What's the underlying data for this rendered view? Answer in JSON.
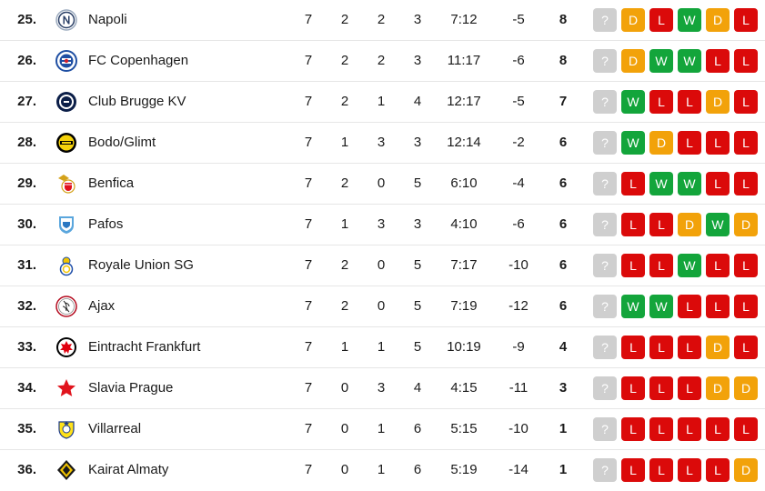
{
  "colors": {
    "win": "#13a53b",
    "draw": "#f2a20a",
    "loss": "#db0a0a",
    "next": "#cfcfcf"
  },
  "rows": [
    {
      "rank": "25.",
      "team": "Napoli",
      "logo_icon": "napoli-crest-icon",
      "played": "7",
      "won": "2",
      "drawn": "2",
      "lost": "3",
      "goals": "7:12",
      "diff": "-5",
      "points": "8",
      "form": [
        "?",
        "D",
        "L",
        "W",
        "D",
        "L"
      ]
    },
    {
      "rank": "26.",
      "team": "FC Copenhagen",
      "logo_icon": "fc-copenhagen-crest-icon",
      "played": "7",
      "won": "2",
      "drawn": "2",
      "lost": "3",
      "goals": "11:17",
      "diff": "-6",
      "points": "8",
      "form": [
        "?",
        "D",
        "W",
        "W",
        "L",
        "L"
      ]
    },
    {
      "rank": "27.",
      "team": "Club Brugge KV",
      "logo_icon": "club-brugge-crest-icon",
      "played": "7",
      "won": "2",
      "drawn": "1",
      "lost": "4",
      "goals": "12:17",
      "diff": "-5",
      "points": "7",
      "form": [
        "?",
        "W",
        "L",
        "L",
        "D",
        "L"
      ]
    },
    {
      "rank": "28.",
      "team": "Bodo/Glimt",
      "logo_icon": "bodo-glimt-crest-icon",
      "played": "7",
      "won": "1",
      "drawn": "3",
      "lost": "3",
      "goals": "12:14",
      "diff": "-2",
      "points": "6",
      "form": [
        "?",
        "W",
        "D",
        "L",
        "L",
        "L"
      ]
    },
    {
      "rank": "29.",
      "team": "Benfica",
      "logo_icon": "benfica-crest-icon",
      "played": "7",
      "won": "2",
      "drawn": "0",
      "lost": "5",
      "goals": "6:10",
      "diff": "-4",
      "points": "6",
      "form": [
        "?",
        "L",
        "W",
        "W",
        "L",
        "L"
      ]
    },
    {
      "rank": "30.",
      "team": "Pafos",
      "logo_icon": "pafos-crest-icon",
      "played": "7",
      "won": "1",
      "drawn": "3",
      "lost": "3",
      "goals": "4:10",
      "diff": "-6",
      "points": "6",
      "form": [
        "?",
        "L",
        "L",
        "D",
        "W",
        "D"
      ]
    },
    {
      "rank": "31.",
      "team": "Royale Union SG",
      "logo_icon": "royale-union-sg-crest-icon",
      "played": "7",
      "won": "2",
      "drawn": "0",
      "lost": "5",
      "goals": "7:17",
      "diff": "-10",
      "points": "6",
      "form": [
        "?",
        "L",
        "L",
        "W",
        "L",
        "L"
      ]
    },
    {
      "rank": "32.",
      "team": "Ajax",
      "logo_icon": "ajax-crest-icon",
      "played": "7",
      "won": "2",
      "drawn": "0",
      "lost": "5",
      "goals": "7:19",
      "diff": "-12",
      "points": "6",
      "form": [
        "?",
        "W",
        "W",
        "L",
        "L",
        "L"
      ]
    },
    {
      "rank": "33.",
      "team": "Eintracht Frankfurt",
      "logo_icon": "eintracht-frankfurt-crest-icon",
      "played": "7",
      "won": "1",
      "drawn": "1",
      "lost": "5",
      "goals": "10:19",
      "diff": "-9",
      "points": "4",
      "form": [
        "?",
        "L",
        "L",
        "L",
        "D",
        "L"
      ]
    },
    {
      "rank": "34.",
      "team": "Slavia Prague",
      "logo_icon": "slavia-prague-star-icon",
      "played": "7",
      "won": "0",
      "drawn": "3",
      "lost": "4",
      "goals": "4:15",
      "diff": "-11",
      "points": "3",
      "form": [
        "?",
        "L",
        "L",
        "L",
        "D",
        "D"
      ]
    },
    {
      "rank": "35.",
      "team": "Villarreal",
      "logo_icon": "villarreal-crest-icon",
      "played": "7",
      "won": "0",
      "drawn": "1",
      "lost": "6",
      "goals": "5:15",
      "diff": "-10",
      "points": "1",
      "form": [
        "?",
        "L",
        "L",
        "L",
        "L",
        "L"
      ]
    },
    {
      "rank": "36.",
      "team": "Kairat Almaty",
      "logo_icon": "kairat-almaty-crest-icon",
      "played": "7",
      "won": "0",
      "drawn": "1",
      "lost": "6",
      "goals": "5:19",
      "diff": "-14",
      "points": "1",
      "form": [
        "?",
        "L",
        "L",
        "L",
        "L",
        "D"
      ]
    }
  ]
}
